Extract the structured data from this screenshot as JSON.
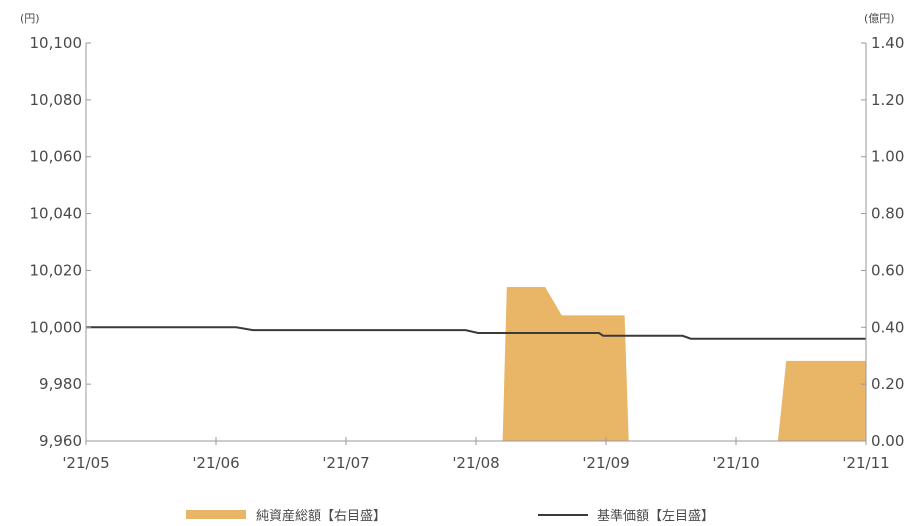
{
  "chart_data": {
    "type": "area",
    "units": {
      "left": "(円)",
      "right": "(億円)"
    },
    "x_ticks": [
      "'21/05",
      "'21/06",
      "'21/07",
      "'21/08",
      "'21/09",
      "'21/10",
      "'21/11"
    ],
    "left_axis": {
      "ylim": [
        9960,
        10100
      ],
      "ticks": [
        9960,
        9980,
        10000,
        10020,
        10040,
        10060,
        10080,
        10100
      ],
      "tick_labels": [
        "9,960",
        "9,980",
        "10,000",
        "10,020",
        "10,040",
        "10,060",
        "10,080",
        "10,100"
      ]
    },
    "right_axis": {
      "ylim": [
        0,
        1.4
      ],
      "ticks": [
        0,
        0.2,
        0.4,
        0.6,
        0.8,
        1.0,
        1.2,
        1.4
      ],
      "tick_labels": [
        "0.00",
        "0.20",
        "0.40",
        "0.60",
        "0.80",
        "1.00",
        "1.20",
        "1.40"
      ]
    },
    "series": [
      {
        "name": "純資産総額【右目盛】",
        "type": "area",
        "axis": "right",
        "color": "#e8b666",
        "points": [
          [
            "2021-05-01",
            0.0
          ],
          [
            "2021-08-09",
            0.0
          ],
          [
            "2021-08-10",
            0.54
          ],
          [
            "2021-08-19",
            0.54
          ],
          [
            "2021-08-23",
            0.44
          ],
          [
            "2021-09-07",
            0.44
          ],
          [
            "2021-09-08",
            0.0
          ],
          [
            "2021-10-14",
            0.0
          ],
          [
            "2021-10-16",
            0.28
          ],
          [
            "2021-11-04",
            0.28
          ]
        ]
      },
      {
        "name": "基準価額【左目盛】",
        "type": "line",
        "axis": "left",
        "color": "#3a3a3a",
        "points": [
          [
            "2021-05-01",
            10000
          ],
          [
            "2021-06-06",
            10000
          ],
          [
            "2021-06-10",
            9999
          ],
          [
            "2021-07-31",
            9999
          ],
          [
            "2021-08-03",
            9998
          ],
          [
            "2021-09-01",
            9998
          ],
          [
            "2021-09-02",
            9997
          ],
          [
            "2021-09-21",
            9997
          ],
          [
            "2021-09-23",
            9996
          ],
          [
            "2021-11-04",
            9996
          ]
        ]
      }
    ],
    "legend_position": "bottom"
  }
}
